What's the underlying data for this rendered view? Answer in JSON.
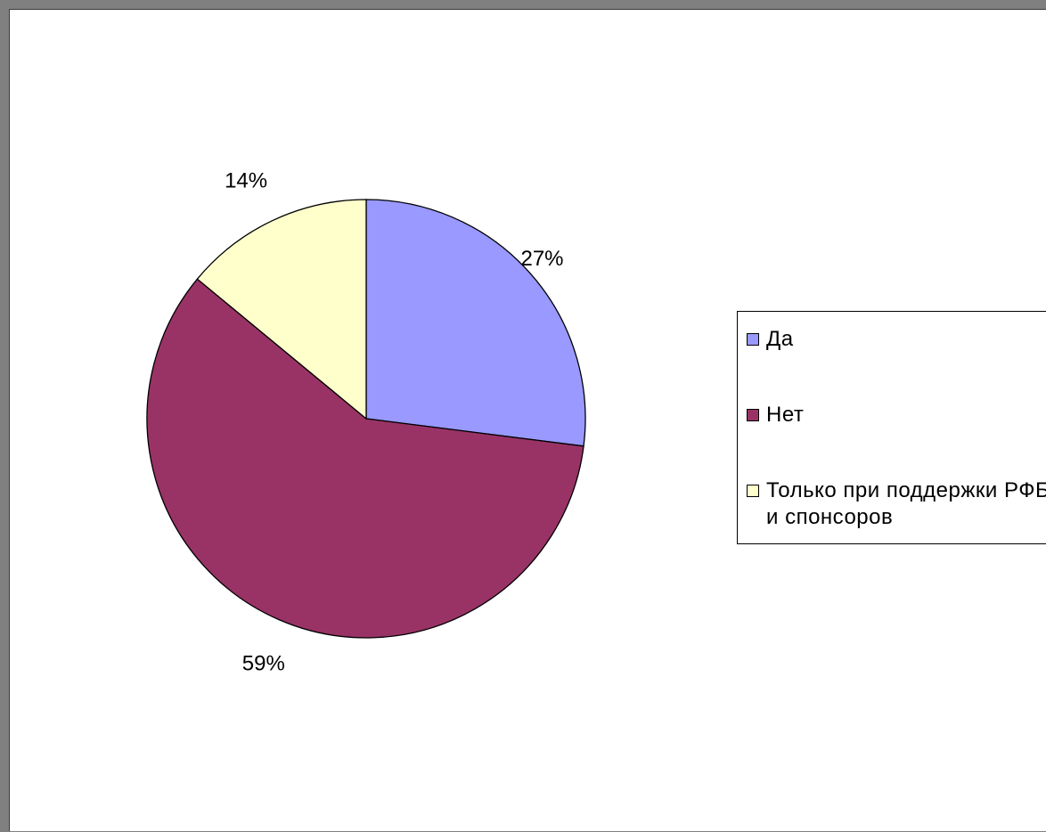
{
  "chart_data": {
    "type": "pie",
    "categories": [
      "Да",
      "Нет",
      "Только при поддержки РФБ и спонсоров"
    ],
    "values": [
      27,
      59,
      14
    ],
    "data_labels": [
      "27%",
      "59%",
      "14%"
    ],
    "colors": [
      "#9999ff",
      "#993366",
      "#ffffcc"
    ],
    "legend_placement": "right"
  },
  "legend": {
    "items": [
      {
        "label": "Да",
        "color": "#9999ff"
      },
      {
        "label": "Нет",
        "color": "#993366"
      },
      {
        "label": "Только при поддержки РФБ и спонсоров",
        "color": "#ffffcc"
      }
    ]
  }
}
